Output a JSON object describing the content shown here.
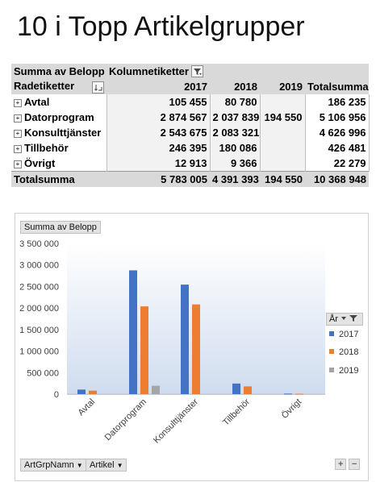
{
  "title": "10 i Topp Artikelgrupper",
  "pivot": {
    "value_field": "Summa av Belopp",
    "column_labels": "Kolumnetiketter",
    "row_labels": "Radetiketter",
    "columns": [
      "2017",
      "2018",
      "2019",
      "Totalsumma"
    ],
    "rows": [
      {
        "label": "Avtal",
        "values": [
          "105 455",
          "80 780",
          "",
          "186 235"
        ]
      },
      {
        "label": "Datorprogram",
        "values": [
          "2 874 567",
          "2 037 839",
          "194 550",
          "5 106 956"
        ]
      },
      {
        "label": "Konsulttjänster",
        "values": [
          "2 543 675",
          "2 083 321",
          "",
          "4 626 996"
        ]
      },
      {
        "label": "Tillbehör",
        "values": [
          "246 395",
          "180 086",
          "",
          "426 481"
        ]
      },
      {
        "label": "Övrigt",
        "values": [
          "12 913",
          "9 366",
          "",
          "22 279"
        ]
      }
    ],
    "total": {
      "label": "Totalsumma",
      "values": [
        "5 783 005",
        "4 391 393",
        "194 550",
        "10 368 948"
      ]
    },
    "expander_glyph": "+"
  },
  "chart_panel": {
    "value_button": "Summa av Belopp",
    "axis_buttons": [
      "ArtGrpNamn",
      "Artikel"
    ],
    "legend_button": "År",
    "zoom_in": "+",
    "zoom_out": "−"
  },
  "chart_data": {
    "type": "bar",
    "categories": [
      "Avtal",
      "Datorprogram",
      "Konsulttjänster",
      "Tillbehör",
      "Övrigt"
    ],
    "series": [
      {
        "name": "2017",
        "color": "#4472c4",
        "values": [
          105455,
          2874567,
          2543675,
          246395,
          12913
        ]
      },
      {
        "name": "2018",
        "color": "#ed7d31",
        "values": [
          80780,
          2037839,
          2083321,
          180086,
          9366
        ]
      },
      {
        "name": "2019",
        "color": "#a5a5a5",
        "values": [
          0,
          194550,
          0,
          0,
          0
        ]
      }
    ],
    "ylim": [
      0,
      3500000
    ],
    "ytick_labels": [
      "3 500 000",
      "3 000 000",
      "2 500 000",
      "2 000 000",
      "1 500 000",
      "1 000 000",
      "500 000",
      "0"
    ],
    "legend_position": "right",
    "grid": false
  }
}
